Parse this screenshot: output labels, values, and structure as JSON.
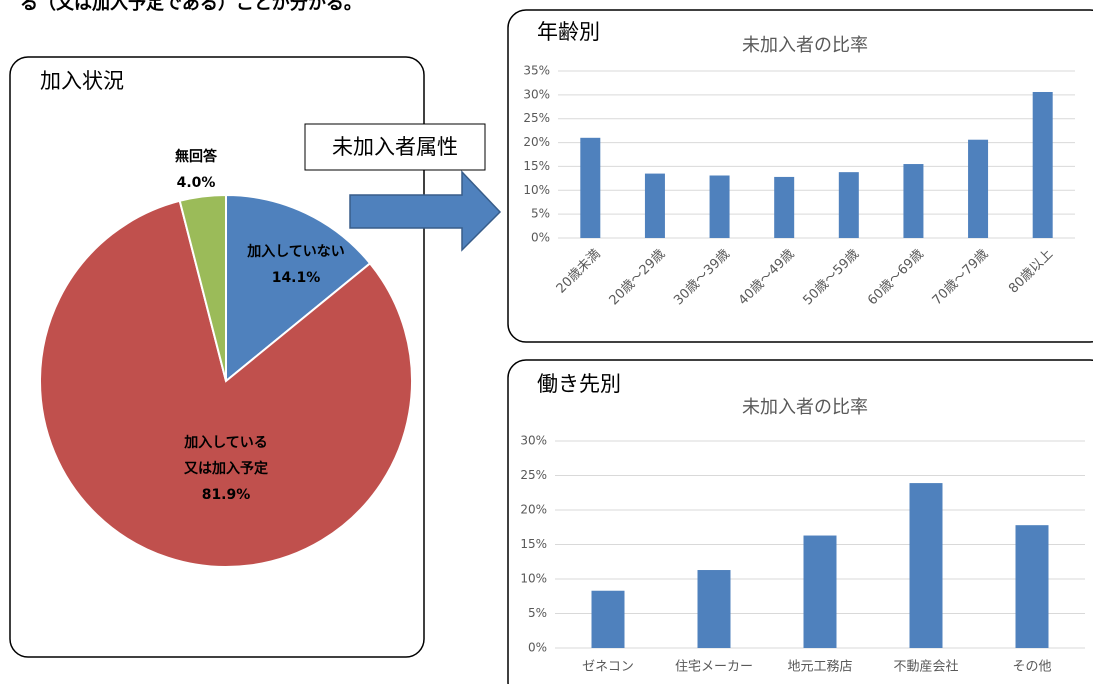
{
  "header_text": "る（又は加入予定である）ことが分かる。",
  "annotation": "未加入者属性",
  "chart_data": [
    {
      "type": "pie",
      "title": "加入状況",
      "categories": [
        "加入していない",
        "加入している\n又は加入予定",
        "無回答"
      ],
      "values": [
        14.1,
        81.9,
        4.0
      ],
      "value_labels": [
        "14.1%",
        "81.9%",
        "4.0%"
      ],
      "colors": [
        "#4f81bd",
        "#c0504d",
        "#9bbb59"
      ]
    },
    {
      "type": "bar",
      "panel_title": "年齢別",
      "title": "未加入者の比率",
      "categories": [
        "20歳未満",
        "20歳～29歳",
        "30歳～39歳",
        "40歳～49歳",
        "50歳～59歳",
        "60歳～69歳",
        "70歳～79歳",
        "80歳以上"
      ],
      "values": [
        21.0,
        13.5,
        13.1,
        12.8,
        13.8,
        15.5,
        20.6,
        30.6
      ],
      "color": "#4f81bd",
      "ylim": [
        0,
        35
      ],
      "yticks": [
        {
          "value": 0,
          "label": "0%"
        },
        {
          "value": 5,
          "label": "5%"
        },
        {
          "value": 10,
          "label": "10%"
        },
        {
          "value": 15,
          "label": "15%"
        },
        {
          "value": 20,
          "label": "20%"
        },
        {
          "value": 25,
          "label": "25%"
        },
        {
          "value": 30,
          "label": "30%"
        },
        {
          "value": 35,
          "label": "35%"
        }
      ],
      "grid": true
    },
    {
      "type": "bar",
      "panel_title": "働き先別",
      "title": "未加入者の比率",
      "categories": [
        "ゼネコン",
        "住宅メーカー",
        "地元工務店",
        "不動産会社",
        "その他"
      ],
      "values": [
        8.3,
        11.3,
        16.3,
        23.9,
        17.8
      ],
      "color": "#4f81bd",
      "ylim": [
        0,
        30
      ],
      "yticks": [
        {
          "value": 0,
          "label": "0%"
        },
        {
          "value": 5,
          "label": "5%"
        },
        {
          "value": 10,
          "label": "10%"
        },
        {
          "value": 15,
          "label": "15%"
        },
        {
          "value": 20,
          "label": "20%"
        },
        {
          "value": 25,
          "label": "25%"
        },
        {
          "value": 30,
          "label": "30%"
        }
      ],
      "grid": true
    }
  ]
}
